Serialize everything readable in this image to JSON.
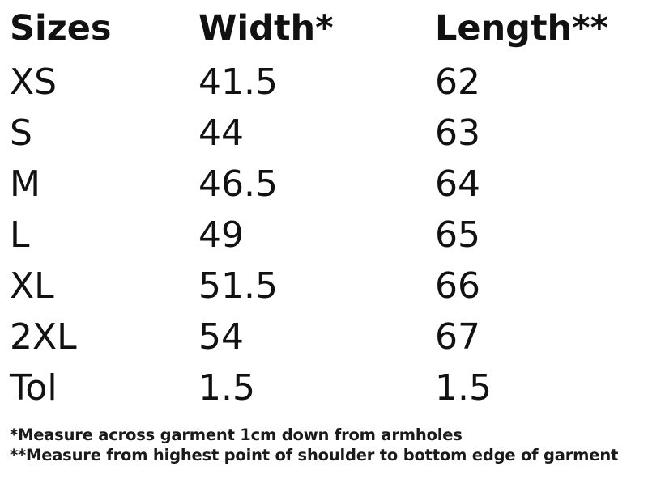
{
  "table": {
    "headers": [
      "Sizes",
      "Width*",
      "Length**"
    ],
    "rows": [
      [
        "XS",
        "41.5",
        "62"
      ],
      [
        "S",
        "44",
        "63"
      ],
      [
        "M",
        "46.5",
        "64"
      ],
      [
        "L",
        "49",
        "65"
      ],
      [
        "XL",
        "51.5",
        "66"
      ],
      [
        "2XL",
        "54",
        "67"
      ],
      [
        "Tol",
        "1.5",
        "1.5"
      ]
    ]
  },
  "footnotes": [
    "*Measure across garment 1cm down from armholes",
    "**Measure from highest point of shoulder to bottom edge of garment"
  ]
}
